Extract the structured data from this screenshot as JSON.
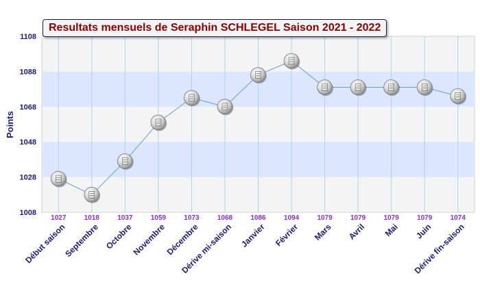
{
  "chart_data": {
    "type": "line",
    "title": "Resultats mensuels de Seraphin SCHLEGEL Saison 2021 - 2022",
    "ylabel": "Points",
    "xlabel": "",
    "ylim": [
      1008,
      1108
    ],
    "yticks": [
      1008,
      1028,
      1048,
      1068,
      1088,
      1108
    ],
    "categories": [
      "Début saison",
      "Septembre",
      "Octobre",
      "Novembre",
      "Décembre",
      "Dérive mi-saison",
      "Janvier",
      "Février",
      "Mars",
      "Avril",
      "Mai",
      "Juin",
      "Dérive fin-saison"
    ],
    "values": [
      1027,
      1018,
      1037,
      1059,
      1073,
      1068,
      1086,
      1094,
      1079,
      1079,
      1079,
      1079,
      1074
    ],
    "value_labels": [
      "1027",
      "1018",
      "1037",
      "1059",
      "1073",
      "1068",
      "1086",
      "1094",
      "1079",
      "1079",
      "1079",
      "1079",
      "1074"
    ],
    "grid": true,
    "colors": {
      "line": "#5aa0e6",
      "band": "#dde6ff",
      "plot_bg": "#f4f4f4",
      "value_label": "#8a2be2",
      "axis_text": "#1a1a7a",
      "title": "#8b0000",
      "vgrid": "#a8d8e8"
    }
  }
}
